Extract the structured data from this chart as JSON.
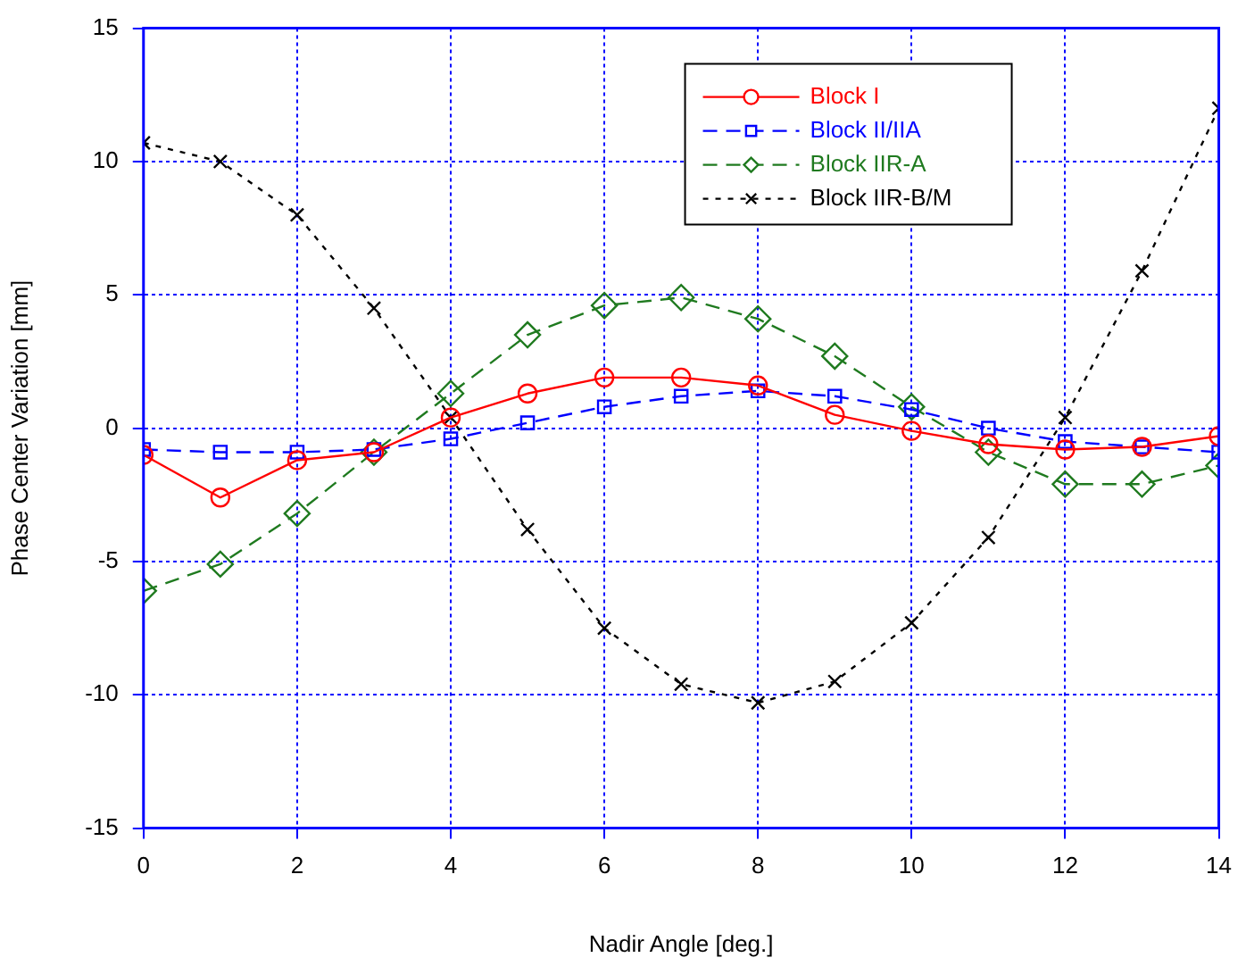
{
  "chart_data": {
    "type": "line",
    "xlabel": "Nadir Angle [deg.]",
    "ylabel": "Phase Center Variation [mm]",
    "x": [
      0,
      1,
      2,
      3,
      4,
      5,
      6,
      7,
      8,
      9,
      10,
      11,
      12,
      13,
      14
    ],
    "xlim": [
      0,
      14
    ],
    "xticks": [
      0,
      2,
      4,
      6,
      8,
      10,
      12,
      14
    ],
    "ylim": [
      -15,
      15
    ],
    "yticks": [
      -15,
      -10,
      -5,
      0,
      5,
      10,
      15
    ],
    "grid": true,
    "legend": "top right",
    "series": [
      {
        "name": "Block I",
        "color": "#ff0000",
        "marker": "circle",
        "line_style": "solid",
        "values": [
          -1.0,
          -2.6,
          -1.2,
          -0.9,
          0.4,
          1.3,
          1.9,
          1.9,
          1.6,
          0.5,
          -0.1,
          -0.6,
          -0.8,
          -0.7,
          -0.3
        ]
      },
      {
        "name": "Block II/IIA",
        "color": "#0000ff",
        "marker": "square",
        "line_style": "dashed",
        "values": [
          -0.8,
          -0.9,
          -0.9,
          -0.8,
          -0.4,
          0.2,
          0.8,
          1.2,
          1.4,
          1.2,
          0.7,
          0.0,
          -0.5,
          -0.7,
          -0.9
        ]
      },
      {
        "name": "Block IIR-A",
        "color": "#1f7a1f",
        "marker": "diamond",
        "line_style": "dashed",
        "values": [
          -6.1,
          -5.1,
          -3.2,
          -0.9,
          1.3,
          3.5,
          4.6,
          4.9,
          4.1,
          2.7,
          0.8,
          -0.9,
          -2.1,
          -2.1,
          -1.4
        ]
      },
      {
        "name": "Block IIR-B/M",
        "color": "#000000",
        "marker": "cross",
        "line_style": "dotted",
        "values": [
          10.7,
          10.0,
          8.0,
          4.5,
          0.4,
          -3.8,
          -7.5,
          -9.6,
          -10.3,
          -9.5,
          -7.3,
          -4.1,
          0.4,
          5.9,
          12.0
        ]
      }
    ]
  }
}
